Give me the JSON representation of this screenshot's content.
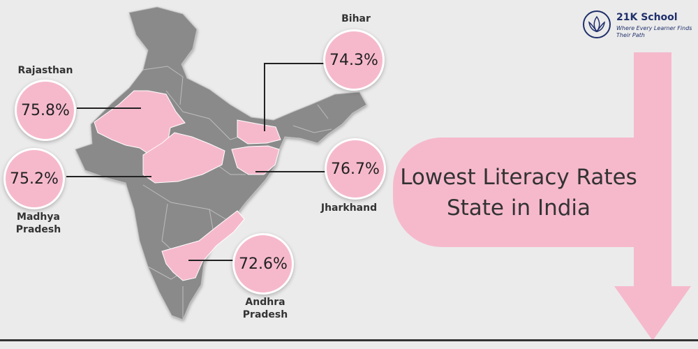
{
  "title": "Lowest Literacy Rates State in India",
  "brand": {
    "name": "21K School",
    "tagline": "Where Every Learner Finds Their Path",
    "color": "#1f2f6b"
  },
  "colors": {
    "highlight": "#f6b9cc",
    "map": "#8a8a8a",
    "background": "#ebebeb"
  },
  "states": [
    {
      "name": "Rajasthan",
      "rate": "75.8%"
    },
    {
      "name": "Madhya Pradesh",
      "rate": "75.2%"
    },
    {
      "name": "Bihar",
      "rate": "74.3%"
    },
    {
      "name": "Jharkhand",
      "rate": "76.7%"
    },
    {
      "name": "Andhra Pradesh",
      "rate": "72.6%"
    }
  ]
}
